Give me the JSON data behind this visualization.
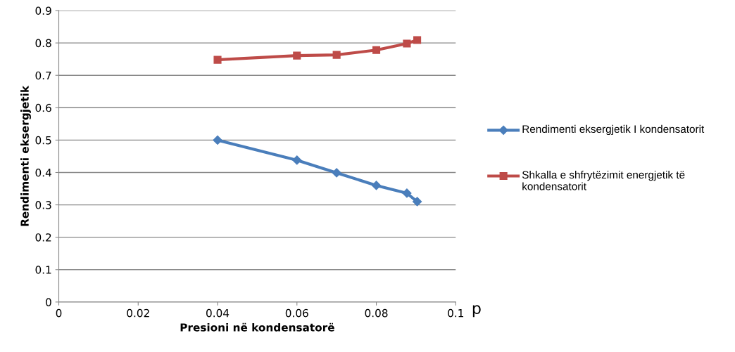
{
  "chart_data": {
    "type": "line",
    "xlabel": "Presioni në kondensatorë",
    "ylabel": "Rendimenti eksergjetik",
    "annotations": [
      "p"
    ],
    "series": [
      {
        "name": "Rendimenti eksergjetik I kondensatorit",
        "color": "#4a7ebb",
        "marker": "diamond",
        "x": [
          0.04,
          0.06,
          0.07,
          0.08,
          0.0877,
          0.0903
        ],
        "values": [
          0.5,
          0.438,
          0.399,
          0.36,
          0.336,
          0.31
        ]
      },
      {
        "name": "Shkalla e shfrytëzimit energjetik të kondensatorit",
        "color": "#be4b48",
        "marker": "square",
        "x": [
          0.04,
          0.06,
          0.07,
          0.08,
          0.0877,
          0.0903
        ],
        "values": [
          0.748,
          0.761,
          0.763,
          0.778,
          0.798,
          0.809
        ]
      }
    ],
    "xlim": [
      0,
      0.1
    ],
    "xticks": [
      {
        "value": 0,
        "label": "0"
      },
      0.02,
      0.04,
      0.06,
      0.08,
      0.1
    ],
    "ylim": [
      0,
      0.9
    ],
    "yticks": [
      {
        "value": 0,
        "label": "0"
      },
      0.1,
      0.2,
      0.3,
      0.4,
      0.5,
      0.6,
      0.7,
      0.8,
      0.9
    ],
    "grid": "y",
    "legend": "right"
  }
}
